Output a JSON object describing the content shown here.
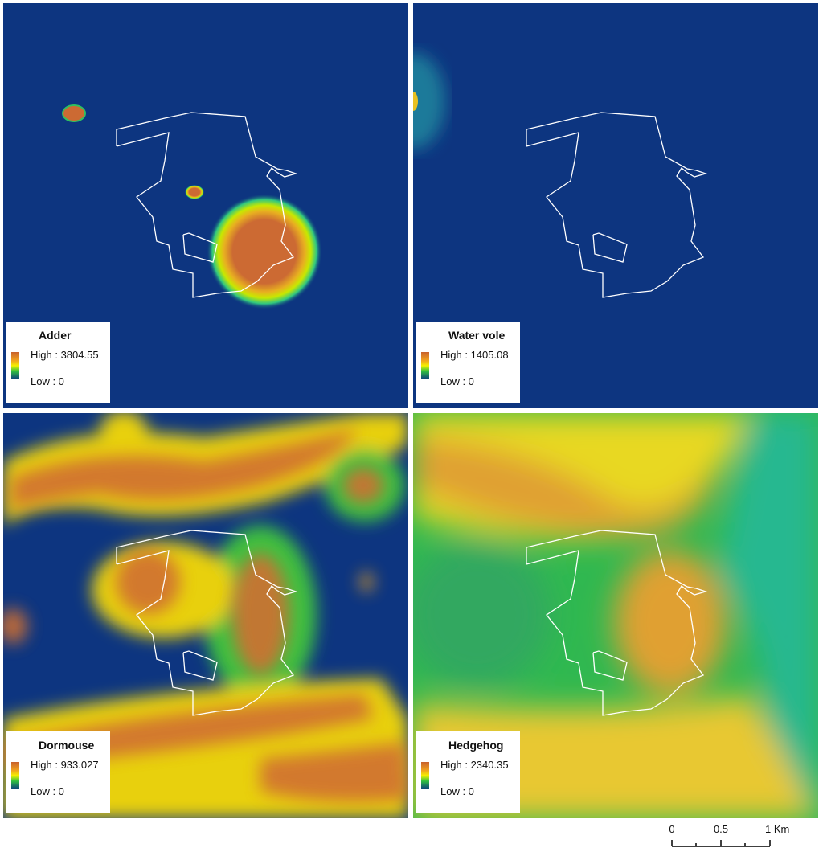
{
  "panels": [
    {
      "title": "Adder",
      "legend": {
        "high": "High : 3804.55",
        "low": "Low : 0"
      }
    },
    {
      "title": "Water vole",
      "legend": {
        "high": "High : 1405.08",
        "low": "Low : 0"
      }
    },
    {
      "title": "Dormouse",
      "legend": {
        "high": "High : 933.027",
        "low": "Low : 0"
      }
    },
    {
      "title": "Hedgehog",
      "legend": {
        "high": "High : 2340.35",
        "low": "Low : 0"
      }
    }
  ],
  "scale_bar": {
    "labels": [
      "0",
      "0.5",
      "1 Km"
    ]
  }
}
